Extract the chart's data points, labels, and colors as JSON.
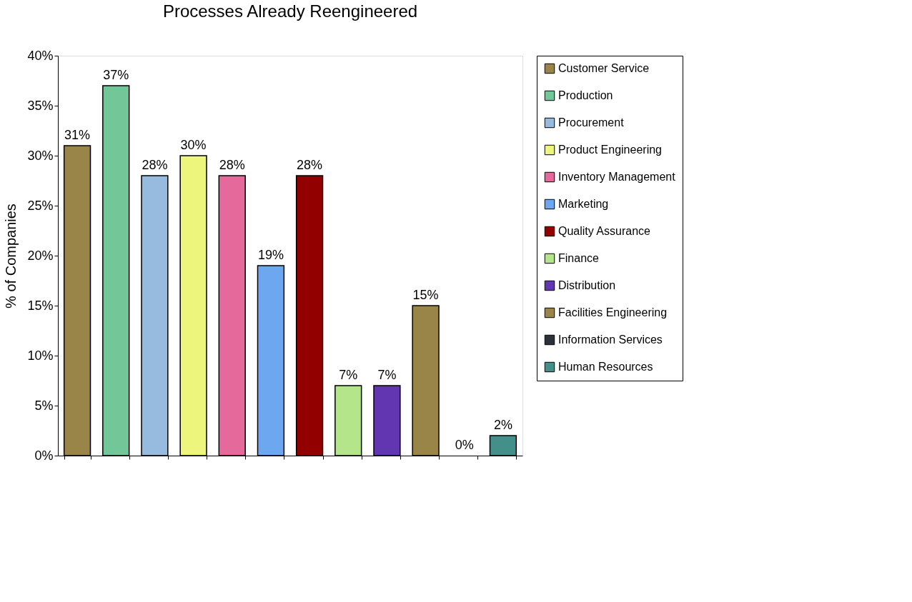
{
  "chart_data": {
    "type": "bar",
    "title": "Processes Already Reengineered",
    "ylabel": "% of Companies",
    "categories": [
      null,
      null,
      null,
      null,
      null,
      null,
      null,
      null,
      null,
      null,
      null,
      null
    ],
    "series": [
      {
        "name": "Customer Service",
        "color": "#9a8549",
        "values": [
          31,
          null,
          null,
          null,
          null,
          null,
          null,
          null,
          null,
          null,
          null,
          null
        ],
        "value_labels": [
          "31%",
          null,
          null,
          null,
          null,
          null,
          null,
          null,
          null,
          null,
          null,
          null
        ]
      },
      {
        "name": "Production",
        "color": "#72c799",
        "values": [
          null,
          37,
          null,
          null,
          null,
          null,
          null,
          null,
          null,
          null,
          null,
          null
        ],
        "value_labels": [
          null,
          "37%",
          null,
          null,
          null,
          null,
          null,
          null,
          null,
          null,
          null,
          null
        ]
      },
      {
        "name": "Procurement",
        "color": "#97badf",
        "values": [
          null,
          null,
          28,
          null,
          null,
          null,
          null,
          null,
          null,
          null,
          null,
          null
        ],
        "value_labels": [
          null,
          null,
          "28%",
          null,
          null,
          null,
          null,
          null,
          null,
          null,
          null,
          null
        ]
      },
      {
        "name": "Product Engineering",
        "color": "#eef57c",
        "values": [
          null,
          null,
          null,
          30,
          null,
          null,
          null,
          null,
          null,
          null,
          null,
          null
        ],
        "value_labels": [
          null,
          null,
          null,
          "30%",
          null,
          null,
          null,
          null,
          null,
          null,
          null,
          null
        ]
      },
      {
        "name": "Inventory Management",
        "color": "#e6699c",
        "values": [
          null,
          null,
          null,
          null,
          28,
          null,
          null,
          null,
          null,
          null,
          null,
          null
        ],
        "value_labels": [
          null,
          null,
          null,
          null,
          "28%",
          null,
          null,
          null,
          null,
          null,
          null,
          null
        ]
      },
      {
        "name": "Marketing",
        "color": "#6da7f0",
        "values": [
          null,
          null,
          null,
          null,
          null,
          19,
          null,
          null,
          null,
          null,
          null,
          null
        ],
        "value_labels": [
          null,
          null,
          null,
          null,
          null,
          "19%",
          null,
          null,
          null,
          null,
          null,
          null
        ]
      },
      {
        "name": "Quality Assurance",
        "color": "#930000",
        "values": [
          null,
          null,
          null,
          null,
          null,
          null,
          28,
          null,
          null,
          null,
          null,
          null
        ],
        "value_labels": [
          null,
          null,
          null,
          null,
          null,
          null,
          "28%",
          null,
          null,
          null,
          null,
          null
        ]
      },
      {
        "name": "Finance",
        "color": "#b5e58a",
        "values": [
          null,
          null,
          null,
          null,
          null,
          null,
          null,
          7,
          null,
          null,
          null,
          null
        ],
        "value_labels": [
          null,
          null,
          null,
          null,
          null,
          null,
          null,
          "7%",
          null,
          null,
          null,
          null
        ]
      },
      {
        "name": "Distribution",
        "color": "#6236b0",
        "values": [
          null,
          null,
          null,
          null,
          null,
          null,
          null,
          null,
          7,
          null,
          null,
          null
        ],
        "value_labels": [
          null,
          null,
          null,
          null,
          null,
          null,
          null,
          null,
          "7%",
          null,
          null,
          null
        ]
      },
      {
        "name": "Facilities Engineering",
        "color": "#9a8549",
        "values": [
          null,
          null,
          null,
          null,
          null,
          null,
          null,
          null,
          null,
          15,
          null,
          null
        ],
        "value_labels": [
          null,
          null,
          null,
          null,
          null,
          null,
          null,
          null,
          null,
          "15%",
          null,
          null
        ]
      },
      {
        "name": "Information Services",
        "color": "#2b323a",
        "values": [
          null,
          null,
          null,
          null,
          null,
          null,
          null,
          null,
          null,
          null,
          0,
          null
        ],
        "value_labels": [
          null,
          null,
          null,
          null,
          null,
          null,
          null,
          null,
          null,
          null,
          "0%",
          null
        ]
      },
      {
        "name": "Human Resources",
        "color": "#438f8a",
        "values": [
          null,
          null,
          null,
          null,
          null,
          null,
          null,
          null,
          null,
          null,
          null,
          2
        ],
        "value_labels": [
          null,
          null,
          null,
          null,
          null,
          null,
          null,
          null,
          null,
          null,
          null,
          "2%"
        ]
      }
    ],
    "ylim": [
      0,
      40
    ],
    "yticks": [
      {
        "value": 0,
        "label": "0%"
      },
      {
        "value": 5,
        "label": "5%"
      },
      {
        "value": 10,
        "label": "10%"
      },
      {
        "value": 15,
        "label": "15%"
      },
      {
        "value": 20,
        "label": "20%"
      },
      {
        "value": 25,
        "label": "25%"
      },
      {
        "value": 30,
        "label": "30%"
      },
      {
        "value": 35,
        "label": "35%"
      },
      {
        "value": 40,
        "label": "40%"
      }
    ],
    "tick_labels": "y",
    "legend": "right",
    "grid": false
  }
}
